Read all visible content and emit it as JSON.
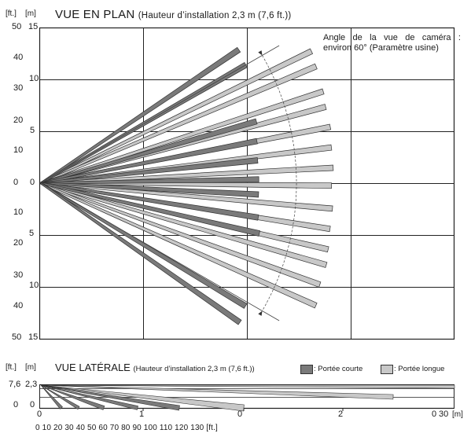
{
  "plan": {
    "unit_ft": "[ft.]",
    "unit_m": "[m]",
    "title": "VUE EN PLAN",
    "subtitle": "(Hauteur d’installation 2,3 m (7,6 ft.))",
    "angle_note": "Angle de la vue de caméra : environ 60° (Paramètre usine)",
    "y_ft_labels": [
      "50",
      "40",
      "30",
      "20",
      "10",
      "0",
      "10",
      "20",
      "30",
      "40",
      "50"
    ],
    "y_m_labels": [
      "15",
      "10",
      "5",
      "0",
      "5",
      "10",
      "15"
    ],
    "grid_m_labels": [
      "10",
      "5",
      "0",
      "5",
      "10"
    ],
    "beams_long": [
      {
        "angle_deg": 26,
        "length_m": 14.5
      },
      {
        "angle_deg": 23,
        "length_m": 14.4
      },
      {
        "angle_deg": 18,
        "length_m": 14.3
      },
      {
        "angle_deg": 15,
        "length_m": 14.2
      },
      {
        "angle_deg": 11,
        "length_m": 14.2
      },
      {
        "angle_deg": 7,
        "length_m": 14.1
      },
      {
        "angle_deg": 3,
        "length_m": 14.1
      },
      {
        "angle_deg": -0.5,
        "length_m": 14.0
      },
      {
        "angle_deg": -5,
        "length_m": 14.1
      },
      {
        "angle_deg": -9,
        "length_m": 14.1
      },
      {
        "angle_deg": -13,
        "length_m": 14.2
      },
      {
        "angle_deg": -16,
        "length_m": 14.3
      },
      {
        "angle_deg": -20,
        "length_m": 14.3
      },
      {
        "angle_deg": -24,
        "length_m": 14.5
      }
    ],
    "beams_short": [
      {
        "angle_deg": 34,
        "length_m": 11.5
      },
      {
        "angle_deg": 30,
        "length_m": 11.4
      },
      {
        "angle_deg": 16,
        "length_m": 10.8
      },
      {
        "angle_deg": 11,
        "length_m": 10.6
      },
      {
        "angle_deg": 6,
        "length_m": 10.5
      },
      {
        "angle_deg": 1,
        "length_m": 10.5
      },
      {
        "angle_deg": -3,
        "length_m": 10.5
      },
      {
        "angle_deg": -9,
        "length_m": 10.6
      },
      {
        "angle_deg": -13,
        "length_m": 10.8
      },
      {
        "angle_deg": -31,
        "length_m": 11.5
      },
      {
        "angle_deg": -35,
        "length_m": 11.7
      }
    ],
    "fov_half_angle_deg": 30
  },
  "side": {
    "unit_ft": "[ft.]",
    "unit_m": "[m]",
    "title": "VUE LATÉRALE",
    "subtitle": "(Hauteur d’installation 2,3 m (7,6 ft.))",
    "y_ft_labels": [
      "7,6",
      "0"
    ],
    "y_m_labels": [
      "2,3",
      "0"
    ],
    "x_m_labels": [
      "0",
      "1",
      "0",
      "2",
      "0",
      "30"
    ],
    "x_unit_m": "[m]",
    "x_ft_labels": "0 10 20 30 40 50 60 70 80 90 100 110 120 130 [ft.]",
    "legend_short": ": Portée courte",
    "legend_long": ": Portée longue"
  },
  "colors": {
    "short_range": "#7a7a7a",
    "long_range": "#c8c8c8",
    "grid": "#222222",
    "ray": "#555555"
  }
}
